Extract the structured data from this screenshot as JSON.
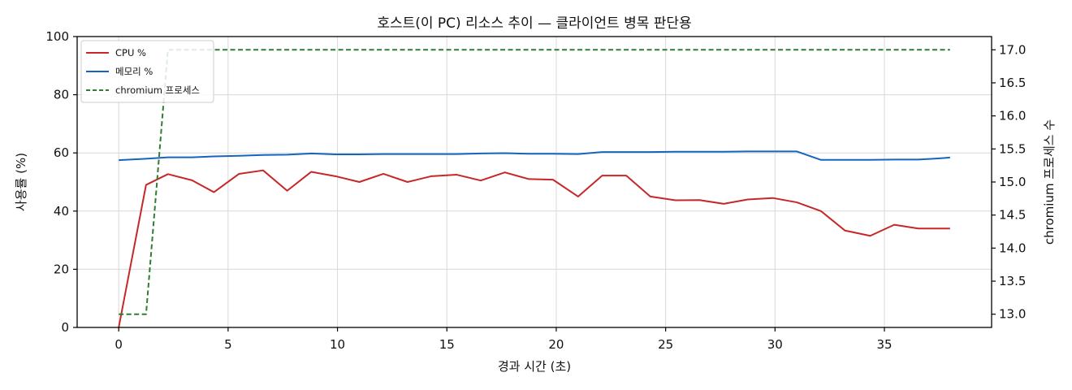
{
  "chart_data": {
    "type": "line",
    "title": "호스트(이 PC) 리소스 추이 — 클라이언트 병목 판단용",
    "xlabel": "경과 시간 (초)",
    "ylabel": "사용률 (%)",
    "y2label": "chromium 프로세스 수",
    "xlim": [
      -1.9,
      39.9
    ],
    "ylim": [
      0,
      100
    ],
    "y2lim": [
      12.8,
      17.2
    ],
    "xticks": [
      0,
      5,
      10,
      15,
      20,
      25,
      30,
      35
    ],
    "yticks": [
      0,
      20,
      40,
      60,
      80,
      100
    ],
    "y2ticks": [
      13.0,
      13.5,
      14.0,
      14.5,
      15.0,
      15.5,
      16.0,
      16.5,
      17.0
    ],
    "y2tick_labels": [
      "13.0",
      "13.5",
      "14.0",
      "14.5",
      "15.0",
      "15.5",
      "16.0",
      "16.5",
      "17.0"
    ],
    "grid": true,
    "legend_position": "top-left",
    "series": [
      {
        "name": "CPU %",
        "axis": "left",
        "color": "#c62828",
        "style": "solid",
        "x": [
          0,
          1.25,
          2.25,
          3.35,
          4.35,
          5.5,
          6.6,
          7.7,
          8.8,
          9.9,
          11.0,
          12.1,
          13.2,
          14.3,
          15.45,
          16.55,
          17.65,
          18.75,
          19.85,
          21.0,
          22.1,
          23.2,
          24.3,
          25.45,
          26.55,
          27.65,
          28.75,
          29.9,
          31.0,
          32.1,
          33.2,
          34.35,
          35.45,
          36.55,
          37.65,
          38.0
        ],
        "y": [
          0,
          49,
          52.7,
          50.6,
          46.5,
          52.8,
          54,
          47,
          53.5,
          52,
          50,
          52.8,
          50,
          52,
          52.5,
          50.5,
          53.3,
          51,
          50.8,
          45,
          52.2,
          52.2,
          45,
          43.7,
          43.8,
          42.5,
          44,
          44.5,
          43,
          40,
          33.3,
          31.5,
          35.3,
          34,
          34,
          34
        ]
      },
      {
        "name": "메모리 %",
        "axis": "left",
        "color": "#1565c0",
        "style": "solid",
        "x": [
          0,
          1.25,
          2.25,
          3.35,
          4.35,
          5.5,
          6.6,
          7.7,
          8.8,
          9.9,
          11.0,
          12.1,
          13.2,
          14.3,
          15.45,
          16.55,
          17.65,
          18.75,
          19.85,
          21.0,
          22.1,
          23.2,
          24.3,
          25.45,
          26.55,
          27.65,
          28.75,
          29.9,
          31.0,
          32.1,
          33.2,
          34.35,
          35.45,
          36.55,
          37.65,
          38.0
        ],
        "y": [
          57.5,
          58,
          58.5,
          58.5,
          58.8,
          59,
          59.3,
          59.4,
          59.8,
          59.5,
          59.5,
          59.6,
          59.6,
          59.6,
          59.6,
          59.8,
          59.9,
          59.7,
          59.7,
          59.6,
          60.3,
          60.3,
          60.3,
          60.4,
          60.4,
          60.4,
          60.5,
          60.5,
          60.5,
          57.6,
          57.6,
          57.6,
          57.7,
          57.7,
          58.2,
          58.4
        ]
      },
      {
        "name": "chromium 프로세스",
        "axis": "right",
        "color": "#2e7d32",
        "style": "dashed",
        "x": [
          0,
          1.25,
          2.25,
          3.35,
          4.35,
          5.5,
          6.6,
          7.7,
          8.8,
          9.9,
          11.0,
          12.1,
          13.2,
          14.3,
          15.45,
          16.55,
          17.65,
          18.75,
          19.85,
          21.0,
          22.1,
          23.2,
          24.3,
          25.45,
          26.55,
          27.65,
          28.75,
          29.9,
          31.0,
          32.1,
          33.2,
          34.35,
          35.45,
          36.55,
          37.65,
          38.0
        ],
        "y": [
          13,
          13,
          17,
          17,
          17,
          17,
          17,
          17,
          17,
          17,
          17,
          17,
          17,
          17,
          17,
          17,
          17,
          17,
          17,
          17,
          17,
          17,
          17,
          17,
          17,
          17,
          17,
          17,
          17,
          17,
          17,
          17,
          17,
          17,
          17,
          17
        ]
      }
    ]
  }
}
